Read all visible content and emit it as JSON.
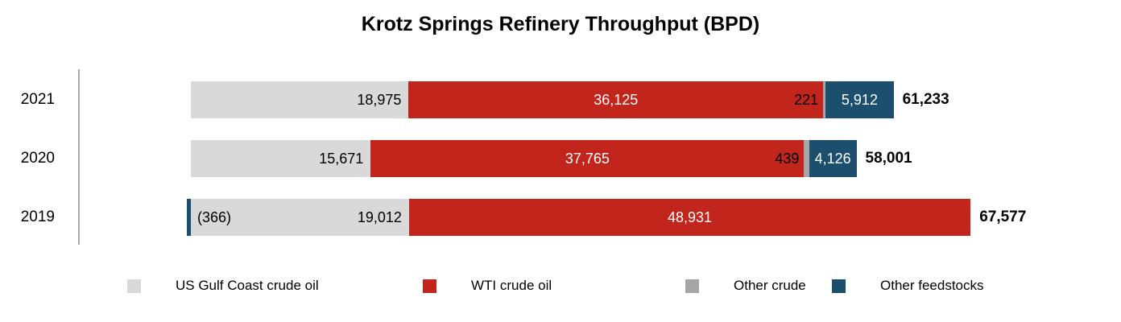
{
  "chart_data": {
    "type": "bar",
    "orientation": "horizontal",
    "stacked": true,
    "title": "Krotz Springs Refinery Throughput (BPD)",
    "categories": [
      "2021",
      "2020",
      "2019"
    ],
    "series": [
      {
        "name": "US Gulf Coast crude oil",
        "color": "#d9d9d9",
        "label_color": "#000000",
        "label_placement": "inside-end",
        "values": [
          18975,
          15671,
          19012
        ],
        "labels": [
          "18,975",
          "15,671",
          "19,012"
        ]
      },
      {
        "name": "WTI crude oil",
        "color": "#c1251c",
        "label_color": "#ffffff",
        "label_placement": "center",
        "values": [
          36125,
          37765,
          48931
        ],
        "labels": [
          "36,125",
          "37,765",
          "48,931"
        ]
      },
      {
        "name": "Other crude",
        "color": "#a6a6a6",
        "label_color": "#000000",
        "label_placement": "outside-start",
        "values": [
          221,
          439,
          0
        ],
        "labels": [
          "221",
          "439",
          ""
        ]
      },
      {
        "name": "Other feedstocks",
        "color": "#1c4f6e",
        "label_color": "#ffffff",
        "label_placement": "center",
        "values": [
          5912,
          4126,
          -366
        ],
        "labels": [
          "5,912",
          "4,126",
          "(366)"
        ]
      }
    ],
    "totals": [
      61233,
      58001,
      67577
    ],
    "total_labels": [
      "61,233",
      "58,001",
      "67,577"
    ],
    "xlim": [
      -1000,
      70000
    ],
    "grid": false,
    "value_axis_visible": false,
    "legend_position": "bottom"
  },
  "legend": {
    "items": [
      {
        "label": "US Gulf Coast crude oil",
        "color": "#d9d9d9"
      },
      {
        "label": "WTI crude oil",
        "color": "#c1251c"
      },
      {
        "label": "Other crude",
        "color": "#a6a6a6"
      },
      {
        "label": "Other feedstocks",
        "color": "#1c4f6e"
      }
    ]
  }
}
